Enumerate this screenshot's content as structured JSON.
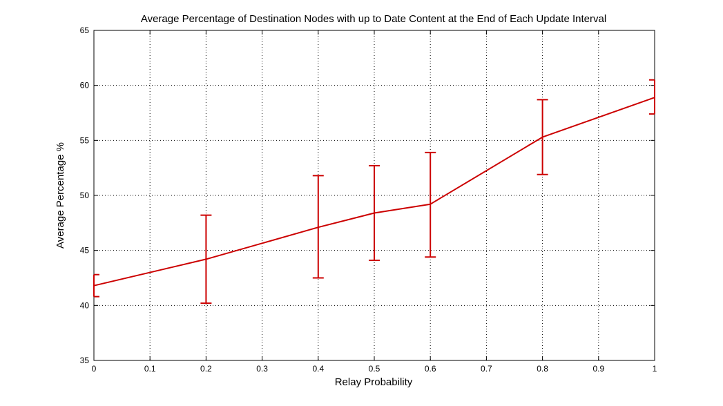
{
  "chart_data": {
    "type": "line",
    "title": "Average Percentage of Destination Nodes with up to Date Content at the End of Each Update Interval",
    "xlabel": "Relay Probability",
    "ylabel": "Average Percentage %",
    "xlim": [
      0,
      1
    ],
    "ylim": [
      35,
      65
    ],
    "xticks": [
      "0",
      "0.1",
      "0.2",
      "0.3",
      "0.4",
      "0.5",
      "0.6",
      "0.7",
      "0.8",
      "0.9",
      "1"
    ],
    "yticks": [
      "35",
      "40",
      "45",
      "50",
      "55",
      "60",
      "65"
    ],
    "grid": true,
    "series": [
      {
        "x": [
          0,
          0.2,
          0.4,
          0.5,
          0.6,
          0.8,
          1.0
        ],
        "y": [
          41.8,
          44.2,
          47.1,
          48.4,
          49.2,
          55.3,
          58.9
        ],
        "error_low": [
          40.8,
          40.2,
          42.5,
          44.1,
          44.4,
          51.9,
          57.4
        ],
        "error_high": [
          42.8,
          48.2,
          51.8,
          52.7,
          53.9,
          58.7,
          60.5
        ],
        "color": "#cc0000"
      }
    ]
  }
}
